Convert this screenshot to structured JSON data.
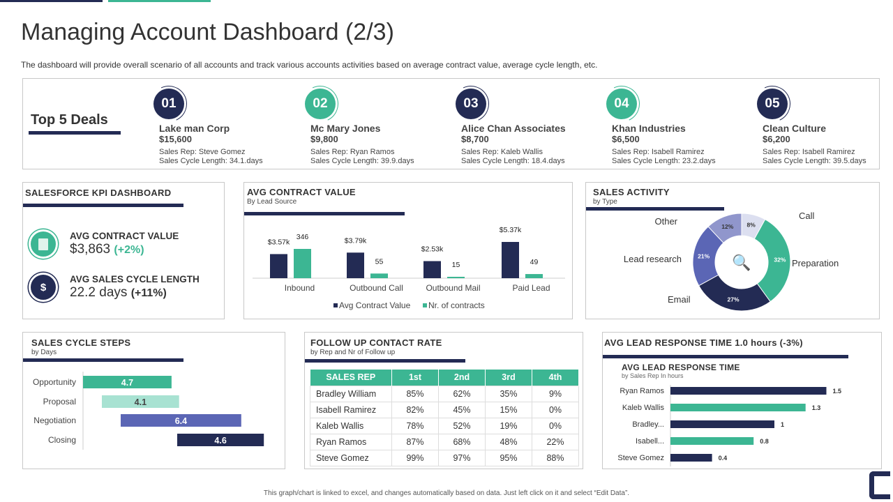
{
  "title": "Managing Account Dashboard (2/3)",
  "subtitle": "The dashboard will provide overall scenario of all accounts and track various accounts activities based on average contract value, average cycle length, etc.",
  "colors": {
    "navy": "#232b54",
    "teal": "#3cb693",
    "light_teal": "#a8e2d2",
    "indigo": "#5b66b5",
    "lavender": "#9096cc",
    "pale": "#dcdff0"
  },
  "top_deals": {
    "title": "Top 5 Deals",
    "deals": [
      {
        "num": "01",
        "name": "Lake man Corp",
        "value": "$15,600",
        "rep": "Sales Rep: Steve Gomez",
        "cycle": "Sales Cycle Length: 34.1.days",
        "color": "navy"
      },
      {
        "num": "02",
        "name": "Mc Mary Jones",
        "value": "$9,800",
        "rep": "Sales Rep: Ryan Ramos",
        "cycle": "Sales Cycle Length: 39.9.days",
        "color": "teal"
      },
      {
        "num": "03",
        "name": "Alice Chan Associates",
        "value": "$8,700",
        "rep": "Sales Rep: Kaleb Wallis",
        "cycle": "Sales Cycle Length: 18.4.days",
        "color": "navy"
      },
      {
        "num": "04",
        "name": "Khan Industries",
        "value": "$6,500",
        "rep": "Sales Rep: Isabell Ramirez",
        "cycle": "Sales Cycle Length: 23.2.days",
        "color": "teal"
      },
      {
        "num": "05",
        "name": "Clean Culture",
        "value": "$6,200",
        "rep": "Sales Rep: Isabell Ramirez",
        "cycle": "Sales Cycle Length: 39.5.days",
        "color": "navy"
      }
    ]
  },
  "kpi": {
    "title": "SALESFORCE  KPI DASHBOARD",
    "items": [
      {
        "label": "AVG CONTRACT  VALUE",
        "value": "$3,863",
        "change": "(+2%)",
        "icon": "document-icon"
      },
      {
        "label": "AVG SALES CYCLE  LENGTH",
        "value": "22.2 days",
        "change": "(+11%)",
        "icon": "dollar-cycle-icon"
      }
    ]
  },
  "chart_data": [
    {
      "type": "bar",
      "title": "AVG CONTRACT  VALUE",
      "subtitle": "By Lead Source",
      "categories": [
        "Inbound",
        "Outbound Call",
        "Outbound Mail",
        "Paid Lead"
      ],
      "series": [
        {
          "name": "Avg Contract Value",
          "values": [
            3.57,
            3.79,
            2.53,
            5.37
          ],
          "labels": [
            "$3.57k",
            "$3.79k",
            "$2.53k",
            "$5.37k"
          ],
          "color": "#232b54"
        },
        {
          "name": "Nr. of contracts",
          "values": [
            346,
            55,
            15,
            49
          ],
          "labels": [
            "346",
            "55",
            "15",
            "49"
          ],
          "color": "#3cb693"
        }
      ]
    },
    {
      "type": "pie",
      "title": "SALES ACTIVITY",
      "subtitle": "by Type",
      "slices": [
        {
          "label": "Call",
          "value": 8,
          "text": "8%",
          "color": "#dcdff0"
        },
        {
          "label": "Preparation",
          "value": 32,
          "text": "32%",
          "color": "#3cb693"
        },
        {
          "label": "Email",
          "value": 27,
          "text": "27%",
          "color": "#232b54"
        },
        {
          "label": "Lead research",
          "value": 21,
          "text": "21%",
          "color": "#5b66b5"
        },
        {
          "label": "Other",
          "value": 12,
          "text": "12%",
          "color": "#9096cc"
        }
      ]
    },
    {
      "type": "bar",
      "title": "SALES CYCLE  STEPS",
      "subtitle": "by Days",
      "categories": [
        "Opportunity",
        "Proposal",
        "Negotiation",
        "Closing"
      ],
      "start": [
        0,
        1,
        2,
        5
      ],
      "values": [
        4.7,
        4.1,
        6.4,
        4.6
      ],
      "labels": [
        "4.7",
        "4.1",
        "6.4",
        "4.6"
      ],
      "colors": [
        "#3cb693",
        "#a8e2d2",
        "#5b66b5",
        "#232b54"
      ]
    },
    {
      "type": "bar",
      "title": "AVG LEAD  RESPONSE  TIME",
      "subtitle": "by Sales Rep In hours",
      "categories": [
        "Ryan Ramos",
        "Kaleb Wallis",
        "Bradley...",
        "Isabell...",
        "Steve Gomez"
      ],
      "values": [
        1.5,
        1.3,
        1,
        0.8,
        0.4
      ],
      "labels": [
        "1.5",
        "1.3",
        "1",
        "0.8",
        "0.4"
      ],
      "colors": [
        "#232b54",
        "#3cb693",
        "#232b54",
        "#3cb693",
        "#232b54"
      ]
    }
  ],
  "follow_up": {
    "title": "FOLLOW UP CONTACT RATE",
    "subtitle": "by Rep and Nr of Follow up",
    "headers": [
      "SALES REP",
      "1st",
      "2nd",
      "3rd",
      "4th"
    ],
    "rows": [
      [
        "Bradley William",
        "85%",
        "62%",
        "35%",
        "9%"
      ],
      [
        "Isabell Ramirez",
        "82%",
        "45%",
        "15%",
        "0%"
      ],
      [
        "Kaleb Wallis",
        "78%",
        "52%",
        "19%",
        "0%"
      ],
      [
        "Ryan Ramos",
        "87%",
        "68%",
        "48%",
        "22%"
      ],
      [
        "Steve Gomez",
        "99%",
        "97%",
        "95%",
        "88%"
      ]
    ]
  },
  "lead_response": {
    "title": "AVG LEAD  RESPONSE  TIME 1.0 hours (-3%)"
  },
  "footer": "This graph/chart is linked to excel, and changes automatically based on data. Just left click on it and select “Edit Data”."
}
